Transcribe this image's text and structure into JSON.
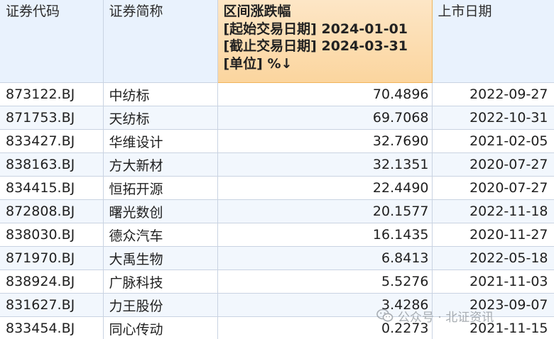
{
  "table": {
    "headers": [
      {
        "lines": [
          "证券代码"
        ]
      },
      {
        "lines": [
          "证券简称"
        ]
      },
      {
        "lines": [
          "区间涨跌幅",
          "[起始交易日期] 2024-01-01",
          "[截止交易日期] 2024-03-31",
          "[单位] %↓"
        ]
      },
      {
        "lines": [
          "上市日期"
        ]
      }
    ],
    "rows": [
      {
        "code": "873122.BJ",
        "name": "中纺标",
        "change": "70.4896",
        "listing_date": "2022-09-27"
      },
      {
        "code": "871753.BJ",
        "name": "天纺标",
        "change": "69.7068",
        "listing_date": "2022-10-31"
      },
      {
        "code": "833427.BJ",
        "name": "华维设计",
        "change": "32.7690",
        "listing_date": "2021-02-05"
      },
      {
        "code": "838163.BJ",
        "name": "方大新材",
        "change": "32.1351",
        "listing_date": "2020-07-27"
      },
      {
        "code": "834415.BJ",
        "name": "恒拓开源",
        "change": "22.4490",
        "listing_date": "2020-07-27"
      },
      {
        "code": "872808.BJ",
        "name": "曙光数创",
        "change": "20.1577",
        "listing_date": "2022-11-18"
      },
      {
        "code": "838030.BJ",
        "name": "德众汽车",
        "change": "16.1435",
        "listing_date": "2020-11-27"
      },
      {
        "code": "871970.BJ",
        "name": "大禹生物",
        "change": "6.8413",
        "listing_date": "2022-05-18"
      },
      {
        "code": "838924.BJ",
        "name": "广脉科技",
        "change": "5.5276",
        "listing_date": "2021-11-03"
      },
      {
        "code": "831627.BJ",
        "name": "力王股份",
        "change": "3.4286",
        "listing_date": "2023-09-07"
      },
      {
        "code": "833454.BJ",
        "name": "同心传动",
        "change": "0.2273",
        "listing_date": "2021-11-15"
      }
    ]
  },
  "watermark": {
    "text": "公众号 · 北证资讯",
    "icon": "wechat-icon"
  },
  "colors": {
    "header_bg": "#e9f2fd",
    "sorted_header_bg": "#fbd59e",
    "alt_row_bg": "#f2f7fd",
    "grid_line": "#c9d3e2"
  }
}
